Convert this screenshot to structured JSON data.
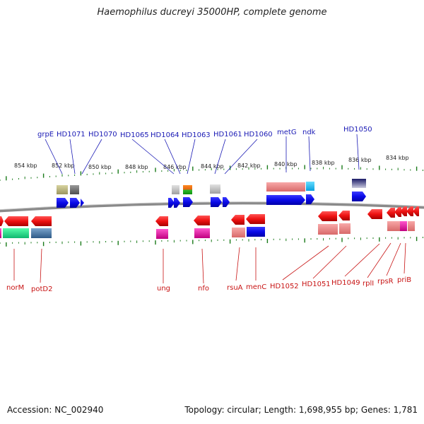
{
  "title": "Haemophilus ducreyi 35000HP, complete genome",
  "footer": {
    "accession": "Accession: NC_002940",
    "summary": "Topology: circular; Length: 1,698,955 bp; Genes: 1,781"
  },
  "scale_labels": [
    "854 kbp",
    "852 kbp",
    "850 kbp",
    "848 kbp",
    "846 kbp",
    "844 kbp",
    "842 kbp",
    "840 kbp",
    "838 kbp",
    "836 kbp",
    "834 kbp"
  ],
  "top_genes": [
    "grpE",
    "HD1071",
    "HD1070",
    "HD1065",
    "HD1064",
    "HD1063",
    "HD1061",
    "HD1060",
    "metG",
    "ndk",
    "HD1050"
  ],
  "bottom_genes": [
    "norM",
    "potD2",
    "ung",
    "nfo",
    "rsuA",
    "menC",
    "HD1052",
    "HD1051",
    "HD1049",
    "rplI",
    "rpsR",
    "priB"
  ],
  "colors": {
    "forward_label": "#1a1ab5",
    "reverse_label": "#c81414",
    "forward_gene": "#1010ee",
    "reverse_gene": "#ee1111",
    "tick": "#1a7a1a",
    "backbone": "#777777"
  }
}
